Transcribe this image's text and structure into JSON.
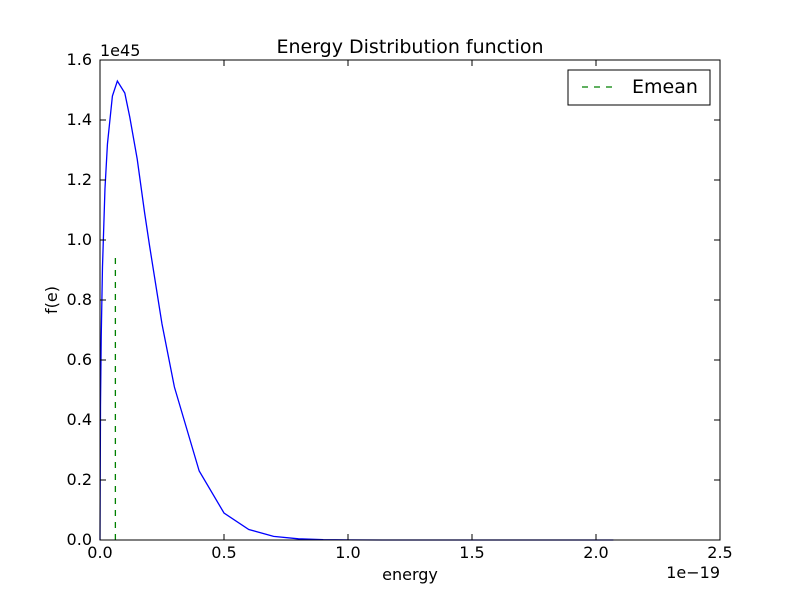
{
  "chart_data": {
    "type": "line",
    "title": "Energy Distribution function",
    "xlabel": "energy",
    "ylabel": "f(e)",
    "x_offset_label": "1e−19",
    "y_offset_label": "1e45",
    "xlim": [
      0,
      2.5e-19
    ],
    "ylim": [
      0,
      1.6e+45
    ],
    "x_ticks": [
      0.0,
      0.5,
      1.0,
      1.5,
      2.0,
      2.5
    ],
    "x_tick_labels": [
      "0.0",
      "0.5",
      "1.0",
      "1.5",
      "2.0",
      "2.5"
    ],
    "y_ticks": [
      0.0,
      0.2,
      0.4,
      0.6,
      0.8,
      1.0,
      1.2,
      1.4,
      1.6
    ],
    "y_tick_labels": [
      "0.0",
      "0.2",
      "0.4",
      "0.6",
      "0.8",
      "1.0",
      "1.2",
      "1.4",
      "1.6"
    ],
    "grid": false,
    "legend_position": "top-right",
    "series": [
      {
        "kind": "curve",
        "color": "#0000ff",
        "style": "solid",
        "x": [
          0,
          2e-22,
          5e-22,
          1e-21,
          2e-21,
          3e-21,
          5e-21,
          7e-21,
          1e-20,
          1.2e-20,
          1.5e-20,
          1.8e-20,
          2e-20,
          2.5e-20,
          3e-20,
          4e-20,
          5e-20,
          6e-20,
          7e-20,
          8e-20,
          9e-20,
          1e-19,
          1.2e-19,
          1.5e-19,
          1.8e-19,
          2.07e-19
        ],
        "y": [
          0,
          4.5e+44,
          6.8e+44,
          9.1e+44,
          1.17e+45,
          1.32e+45,
          1.48e+45,
          1.53e+45,
          1.49e+45,
          1.41e+45,
          1.27e+45,
          1.09e+45,
          9.8e+44,
          7.2e+44,
          5.1e+44,
          2.3e+44,
          9e+43,
          3.5e+43,
          1.2e+43,
          4e+42,
          1e+42,
          3e+41,
          0,
          0,
          0,
          0
        ]
      },
      {
        "kind": "vline",
        "name": "Emean",
        "color": "#008000",
        "style": "dashed",
        "x": 6.2e-21,
        "y_top": 9.4e+44
      }
    ]
  }
}
